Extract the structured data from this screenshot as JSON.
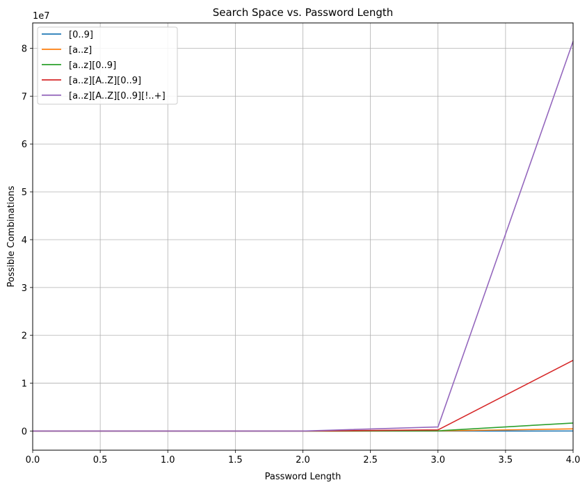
{
  "chart_data": {
    "type": "line",
    "title": "Search Space vs. Password Length",
    "xlabel": "Password Length",
    "ylabel": "Possible Combinations",
    "offset_text": "1e7",
    "xlim": [
      0,
      4
    ],
    "ylim": [
      -4000000,
      85300000
    ],
    "x_ticks": [
      0,
      0.5,
      1,
      1.5,
      2,
      2.5,
      3,
      3.5,
      4
    ],
    "x_tick_labels": [
      "0.0",
      "0.5",
      "1.0",
      "1.5",
      "2.0",
      "2.5",
      "3.0",
      "3.5",
      "4.0"
    ],
    "y_ticks": [
      0,
      10000000,
      20000000,
      30000000,
      40000000,
      50000000,
      60000000,
      70000000,
      80000000
    ],
    "y_tick_labels": [
      "0",
      "1",
      "2",
      "3",
      "4",
      "5",
      "6",
      "7",
      "8"
    ],
    "grid": true,
    "legend_position": "top-left",
    "x": [
      0,
      1,
      2,
      3,
      4
    ],
    "series": [
      {
        "name": "[0..9]",
        "color": "#1f77b4",
        "values": [
          1,
          10,
          100,
          1000,
          10000
        ]
      },
      {
        "name": "[a..z]",
        "color": "#ff7f0e",
        "values": [
          1,
          26,
          676,
          17576,
          456976
        ]
      },
      {
        "name": "[a..z][0..9]",
        "color": "#2ca02c",
        "values": [
          1,
          36,
          1296,
          46656,
          1679616
        ]
      },
      {
        "name": "[a..z][A..Z][0..9]",
        "color": "#d62728",
        "values": [
          1,
          62,
          3844,
          238328,
          14776336
        ]
      },
      {
        "name": "[a..z][A..Z][0..9][!..+]",
        "color": "#9467bd",
        "values": [
          1,
          95,
          9025,
          857375,
          81450625
        ]
      }
    ]
  }
}
